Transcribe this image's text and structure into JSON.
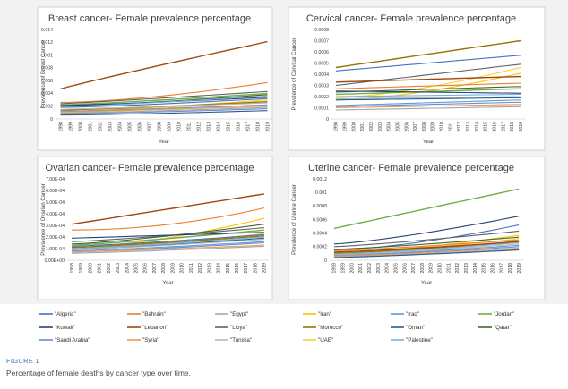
{
  "chart_data": [
    {
      "type": "line",
      "title": "Breast cancer- Female prevalence percentage",
      "xlabel": "Year",
      "ylabel": "Prevalence of Breast Cancer",
      "ylim": [
        0,
        0.014
      ],
      "yticks": [
        "0",
        "0.002",
        "0.004",
        "0.006",
        "0.008",
        "0.01",
        "0.012",
        "0.014"
      ],
      "x": [
        1998,
        1999,
        2000,
        2001,
        2002,
        2003,
        2004,
        2005,
        2006,
        2007,
        2008,
        2009,
        2010,
        2011,
        2012,
        2013,
        2014,
        2015,
        2016,
        2017,
        2018,
        2019
      ],
      "series": [
        {
          "name": "\"Lebanon\"",
          "start": 0.0047,
          "end": 0.0121,
          "curve": 0.95
        },
        {
          "name": "\"Bahrain\"",
          "start": 0.0026,
          "end": 0.0057,
          "curve": 1.6
        },
        {
          "name": "\"Libya\"",
          "start": 0.0024,
          "end": 0.0043,
          "curve": 1.1
        },
        {
          "name": "\"Jordan\"",
          "start": 0.0022,
          "end": 0.004,
          "curve": 1.2
        },
        {
          "name": "\"Qatar\"",
          "start": 0.002,
          "end": 0.0038,
          "curve": 1.3
        },
        {
          "name": "\"Kuwait\"",
          "start": 0.0021,
          "end": 0.0034,
          "curve": 1.2
        },
        {
          "name": "\"Palestine\"",
          "start": 0.0019,
          "end": 0.0036,
          "curve": 1.2
        },
        {
          "name": "\"Algeria\"",
          "start": 0.0018,
          "end": 0.0032,
          "curve": 1.3
        },
        {
          "name": "\"Iran\"",
          "start": 0.0012,
          "end": 0.003,
          "curve": 1.4
        },
        {
          "name": "\"UAE\"",
          "start": 0.001,
          "end": 0.003,
          "curve": 1.5
        },
        {
          "name": "\"Morocco\"",
          "start": 0.0014,
          "end": 0.0027,
          "curve": 1.2
        },
        {
          "name": "\"Tunisia\"",
          "start": 0.0015,
          "end": 0.0025,
          "curve": 1.1
        },
        {
          "name": "\"Iraq\"",
          "start": 0.0012,
          "end": 0.0022,
          "curve": 1.2
        },
        {
          "name": "\"Syria\"",
          "start": 0.0011,
          "end": 0.002,
          "curve": 1.2
        },
        {
          "name": "\"Egypt\"",
          "start": 0.0009,
          "end": 0.0018,
          "curve": 1.2
        },
        {
          "name": "\"Saudi Arabia\"",
          "start": 0.0008,
          "end": 0.0016,
          "curve": 1.3
        },
        {
          "name": "\"Oman\"",
          "start": 0.0006,
          "end": 0.0013,
          "curve": 1.3
        }
      ]
    },
    {
      "type": "line",
      "title": "Cervical cancer- Female prevalence percentage",
      "xlabel": "Year",
      "ylabel": "Prevalence of Cervical Cancer",
      "ylim": [
        0,
        0.0008
      ],
      "yticks": [
        "0",
        "0.0001",
        "0.0002",
        "0.0003",
        "0.0004",
        "0.0005",
        "0.0006",
        "0.0007",
        "0.0008"
      ],
      "x": [
        1998,
        1999,
        2000,
        2001,
        2002,
        2003,
        2004,
        2005,
        2006,
        2007,
        2008,
        2009,
        2010,
        2011,
        2012,
        2013,
        2014,
        2015,
        2016,
        2017,
        2018,
        2019
      ],
      "series": [
        {
          "name": "\"Morocco\"",
          "start": 0.00046,
          "end": 0.0007,
          "curve": 1.0
        },
        {
          "name": "\"Algeria\"",
          "start": 0.00043,
          "end": 0.00057,
          "curve": 1.0
        },
        {
          "name": "\"Libya\"",
          "start": 0.0003,
          "end": 0.00049,
          "curve": 1.0
        },
        {
          "name": "\"UAE\"",
          "start": 0.00019,
          "end": 0.00046,
          "curve": 1.5
        },
        {
          "name": "\"Iran\"",
          "start": 0.00017,
          "end": 0.00041,
          "curve": 1.6
        },
        {
          "name": "\"Lebanon\"",
          "start": 0.00033,
          "end": 0.00038,
          "curve": 1.0
        },
        {
          "name": "\"Bahrain\"",
          "start": 0.00027,
          "end": 0.00032,
          "curve": 1.0
        },
        {
          "name": "\"Qatar\"",
          "start": 0.00024,
          "end": 0.00029,
          "curve": 1.0
        },
        {
          "name": "\"Jordan\"",
          "start": 0.00022,
          "end": 0.00027,
          "curve": 1.0
        },
        {
          "name": "\"Kuwait\"",
          "start": 0.00025,
          "end": 0.00023,
          "curve": 1.0
        },
        {
          "name": "\"Palestine\"",
          "start": 0.0002,
          "end": 0.00022,
          "curve": 1.0
        },
        {
          "name": "\"Tunisia\"",
          "start": 0.00018,
          "end": 0.0002,
          "curve": 1.0
        },
        {
          "name": "\"Oman\"",
          "start": 0.00017,
          "end": 0.00019,
          "curve": 1.0
        },
        {
          "name": "\"Iraq\"",
          "start": 0.00012,
          "end": 0.00017,
          "curve": 1.0
        },
        {
          "name": "\"Saudi Arabia\"",
          "start": 0.00011,
          "end": 0.00015,
          "curve": 1.0
        },
        {
          "name": "\"Syria\"",
          "start": 0.0001,
          "end": 0.00013,
          "curve": 1.0
        },
        {
          "name": "\"Egypt\"",
          "start": 8e-05,
          "end": 0.00011,
          "curve": 1.0
        }
      ]
    },
    {
      "type": "line",
      "title": "Ovarian cancer- Female prevalence percentage",
      "xlabel": "Year",
      "ylabel": "Prevalence of Ovarian Cancer",
      "ylim": [
        0,
        0.0007
      ],
      "yticks": [
        "0.00E+00",
        "1.00E-04",
        "2.00E-04",
        "3.00E-04",
        "4.00E-04",
        "5.00E-04",
        "6.00E-04",
        "7.00E-04"
      ],
      "x": [
        1998,
        1999,
        2000,
        2001,
        2002,
        2003,
        2004,
        2005,
        2006,
        2007,
        2008,
        2009,
        2010,
        2011,
        2012,
        2013,
        2014,
        2015,
        2016,
        2017,
        2018,
        2019
      ],
      "series": [
        {
          "name": "\"Lebanon\"",
          "start": 0.00031,
          "end": 0.00057,
          "curve": 1.0
        },
        {
          "name": "\"Bahrain\"",
          "start": 0.00026,
          "end": 0.00045,
          "curve": 2.0
        },
        {
          "name": "\"Iran\"",
          "start": 0.00011,
          "end": 0.00036,
          "curve": 1.6
        },
        {
          "name": "\"Qatar\"",
          "start": 0.00014,
          "end": 0.00031,
          "curve": 1.3
        },
        {
          "name": "\"Libya\"",
          "start": 0.00016,
          "end": 0.00028,
          "curve": 1.2
        },
        {
          "name": "\"Jordan\"",
          "start": 0.00013,
          "end": 0.00026,
          "curve": 1.2
        },
        {
          "name": "\"Kuwait\"",
          "start": 0.00019,
          "end": 0.00024,
          "curve": 1.0
        },
        {
          "name": "\"UAE\"",
          "start": 0.0001,
          "end": 0.00023,
          "curve": 1.4
        },
        {
          "name": "\"Algeria\"",
          "start": 0.00012,
          "end": 0.00022,
          "curve": 1.2
        },
        {
          "name": "\"Morocco\"",
          "start": 0.00011,
          "end": 0.00021,
          "curve": 1.2
        },
        {
          "name": "\"Palestine\"",
          "start": 0.0001,
          "end": 0.0002,
          "curve": 1.2
        },
        {
          "name": "\"Oman\"",
          "start": 9e-05,
          "end": 0.00019,
          "curve": 1.2
        },
        {
          "name": "\"Tunisia\"",
          "start": 9e-05,
          "end": 0.00018,
          "curve": 1.2
        },
        {
          "name": "\"Iraq\"",
          "start": 8e-05,
          "end": 0.00016,
          "curve": 1.2
        },
        {
          "name": "\"Saudi Arabia\"",
          "start": 7e-05,
          "end": 0.00015,
          "curve": 1.2
        },
        {
          "name": "\"Syria\"",
          "start": 7e-05,
          "end": 0.00013,
          "curve": 1.2
        },
        {
          "name": "\"Egypt\"",
          "start": 6e-05,
          "end": 0.00012,
          "curve": 1.2
        }
      ]
    },
    {
      "type": "line",
      "title": "Uterine cancer- Female prevalence percentage",
      "xlabel": "Year",
      "ylabel": "Prevalence of Uterine Cancer",
      "ylim": [
        0,
        0.0012
      ],
      "yticks": [
        "0",
        "0.0002",
        "0.0004",
        "0.0006",
        "0.0008",
        "0.001",
        "0.0012"
      ],
      "x": [
        1998,
        1999,
        2000,
        2001,
        2002,
        2003,
        2004,
        2005,
        2006,
        2007,
        2008,
        2009,
        2010,
        2011,
        2012,
        2013,
        2014,
        2015,
        2016,
        2017,
        2018,
        2019
      ],
      "series": [
        {
          "name": "\"Jordan\"",
          "start": 0.00047,
          "end": 0.00105,
          "curve": 1.0
        },
        {
          "name": "\"Kuwait\"",
          "start": 0.00024,
          "end": 0.00065,
          "curve": 1.3
        },
        {
          "name": "\"Algeria\"",
          "start": 0.00015,
          "end": 0.00052,
          "curve": 1.5
        },
        {
          "name": "\"Libya\"",
          "start": 0.0002,
          "end": 0.00043,
          "curve": 1.2
        },
        {
          "name": "\"Iran\"",
          "start": 0.00012,
          "end": 0.00037,
          "curve": 1.6
        },
        {
          "name": "\"Qatar\"",
          "start": 0.00016,
          "end": 0.00034,
          "curve": 1.2
        },
        {
          "name": "\"UAE\"",
          "start": 0.00011,
          "end": 0.00032,
          "curve": 1.5
        },
        {
          "name": "\"Bahrain\"",
          "start": 0.00014,
          "end": 0.0003,
          "curve": 1.2
        },
        {
          "name": "\"Morocco\"",
          "start": 0.0001,
          "end": 0.00028,
          "curve": 1.3
        },
        {
          "name": "\"Lebanon\"",
          "start": 0.00012,
          "end": 0.00027,
          "curve": 1.2
        },
        {
          "name": "\"Palestine\"",
          "start": 9e-05,
          "end": 0.00026,
          "curve": 1.3
        },
        {
          "name": "\"Tunisia\"",
          "start": 8e-05,
          "end": 0.00024,
          "curve": 1.3
        },
        {
          "name": "\"Iraq\"",
          "start": 7e-05,
          "end": 0.00022,
          "curve": 1.3
        },
        {
          "name": "\"Saudi Arabia\"",
          "start": 6e-05,
          "end": 0.0002,
          "curve": 1.3
        },
        {
          "name": "\"Syria\"",
          "start": 6e-05,
          "end": 0.00018,
          "curve": 1.2
        },
        {
          "name": "\"Egypt\"",
          "start": 5e-05,
          "end": 0.00016,
          "curve": 1.2
        },
        {
          "name": "\"Oman\"",
          "start": 4e-05,
          "end": 0.00015,
          "curve": 1.2
        }
      ]
    }
  ],
  "legend": {
    "entries": [
      {
        "label": "\"Algeria\"",
        "color": "#4472c4"
      },
      {
        "label": "\"Bahrain\"",
        "color": "#ed7d31"
      },
      {
        "label": "\"Egypt\"",
        "color": "#a5a5a5"
      },
      {
        "label": "\"Iran\"",
        "color": "#ffc000"
      },
      {
        "label": "\"Iraq\"",
        "color": "#5b9bd5"
      },
      {
        "label": "\"Jordan\"",
        "color": "#70ad47"
      },
      {
        "label": "\"Kuwait\"",
        "color": "#264478"
      },
      {
        "label": "\"Lebanon\"",
        "color": "#9e480e"
      },
      {
        "label": "\"Libya\"",
        "color": "#636363"
      },
      {
        "label": "\"Morocco\"",
        "color": "#997300"
      },
      {
        "label": "\"Oman\"",
        "color": "#255e91"
      },
      {
        "label": "\"Qatar\"",
        "color": "#43682b"
      },
      {
        "label": "\"Saudi Arabia\"",
        "color": "#698ed0"
      },
      {
        "label": "\"Syria\"",
        "color": "#f1975a"
      },
      {
        "label": "\"Tunisia\"",
        "color": "#b7b7b7"
      },
      {
        "label": "\"UAE\"",
        "color": "#ffcd33"
      },
      {
        "label": "\"Palestine\"",
        "color": "#7cafdd"
      }
    ]
  },
  "figure": {
    "label": "FIGURE 1",
    "caption": "Percentage of female deaths by cancer type over time."
  }
}
